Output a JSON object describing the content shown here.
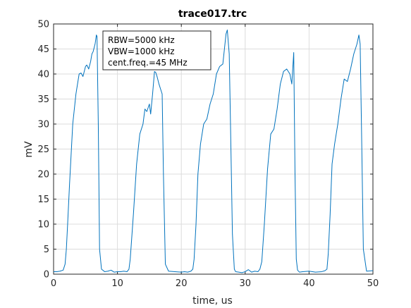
{
  "chart_data": {
    "type": "line",
    "title": "trace017.trc",
    "xlabel": "time, us",
    "ylabel": "mV",
    "xlim": [
      0,
      50
    ],
    "ylim": [
      0,
      50
    ],
    "xticks": [
      0,
      10,
      20,
      30,
      40,
      50
    ],
    "yticks": [
      0,
      5,
      10,
      15,
      20,
      25,
      30,
      35,
      40,
      45,
      50
    ],
    "grid": true,
    "annotation": [
      "RBW=5000 kHz",
      "VBW=1000 kHz",
      "cent.freq.=45 MHz"
    ],
    "series": [
      {
        "color": "#0072bd",
        "x": [
          0,
          0.5,
          1,
          1.5,
          1.8,
          2.0,
          2.2,
          2.5,
          3.0,
          3.5,
          4.0,
          4.3,
          4.6,
          5.0,
          5.2,
          5.5,
          5.8,
          6.0,
          6.2,
          6.5,
          6.7,
          6.8,
          7.0,
          7.2,
          7.5,
          8,
          8.5,
          9,
          9.5,
          10,
          10.5,
          11,
          11.5,
          11.8,
          12.0,
          12.5,
          13.0,
          13.5,
          14.0,
          14.3,
          14.6,
          15.0,
          15.2,
          15.5,
          15.8,
          16.0,
          16.2,
          16.5,
          17.0,
          17.2,
          17.5,
          18,
          19,
          20,
          20.5,
          21,
          21.5,
          21.8,
          22.0,
          22.3,
          22.6,
          23.0,
          23.5,
          24.0,
          24.5,
          25.0,
          25.5,
          26.0,
          26.5,
          27.0,
          27.2,
          27.5,
          27.7,
          28.0,
          28.3,
          28.5,
          29,
          29.5,
          30,
          30.5,
          31,
          31.5,
          32,
          32.3,
          32.6,
          33.0,
          33.5,
          34.0,
          34.5,
          35.0,
          35.5,
          36.0,
          36.5,
          37.0,
          37.3,
          37.6,
          37.8,
          38.0,
          38.2,
          38.5,
          39,
          40,
          41,
          42,
          42.5,
          42.8,
          43.0,
          43.3,
          43.6,
          44.0,
          44.5,
          45.0,
          45.5,
          46.0,
          46.5,
          47.0,
          47.5,
          47.8,
          48.0,
          48.2,
          48.5,
          49,
          50
        ],
        "y": [
          0.5,
          0.5,
          0.6,
          0.8,
          2.0,
          5.0,
          10.0,
          18.0,
          30.0,
          36.0,
          40.0,
          40.2,
          39.5,
          41.5,
          41.8,
          41.0,
          42.5,
          44.0,
          44.5,
          46.0,
          47.8,
          47.5,
          30.0,
          5.0,
          1.0,
          0.5,
          0.6,
          0.8,
          0.4,
          0.5,
          0.5,
          0.6,
          0.5,
          1.0,
          3.0,
          12.0,
          22.0,
          28.0,
          30.0,
          33.0,
          32.5,
          34.0,
          32.0,
          36.0,
          40.5,
          40.3,
          39.5,
          38.0,
          36.0,
          20.0,
          2.0,
          0.6,
          0.5,
          0.4,
          0.5,
          0.4,
          0.6,
          1.0,
          3.0,
          10.0,
          20.0,
          26.0,
          30.0,
          31.0,
          34.0,
          36.0,
          40.0,
          41.5,
          42.0,
          48.0,
          48.8,
          44.0,
          30.0,
          8.0,
          1.0,
          0.5,
          0.4,
          0.3,
          0.5,
          0.9,
          0.4,
          0.6,
          0.5,
          1.0,
          2.5,
          10.0,
          21.0,
          28.0,
          29.0,
          33.0,
          38.0,
          40.5,
          41.0,
          40.0,
          38.0,
          44.3,
          20.0,
          3.0,
          0.8,
          0.4,
          0.5,
          0.6,
          0.4,
          0.5,
          0.7,
          1.0,
          4.0,
          12.0,
          22.0,
          26.0,
          30.0,
          35.0,
          39.0,
          38.5,
          41.0,
          44.0,
          46.0,
          47.8,
          46.0,
          30.0,
          5.0,
          0.6,
          0.7
        ]
      }
    ]
  }
}
